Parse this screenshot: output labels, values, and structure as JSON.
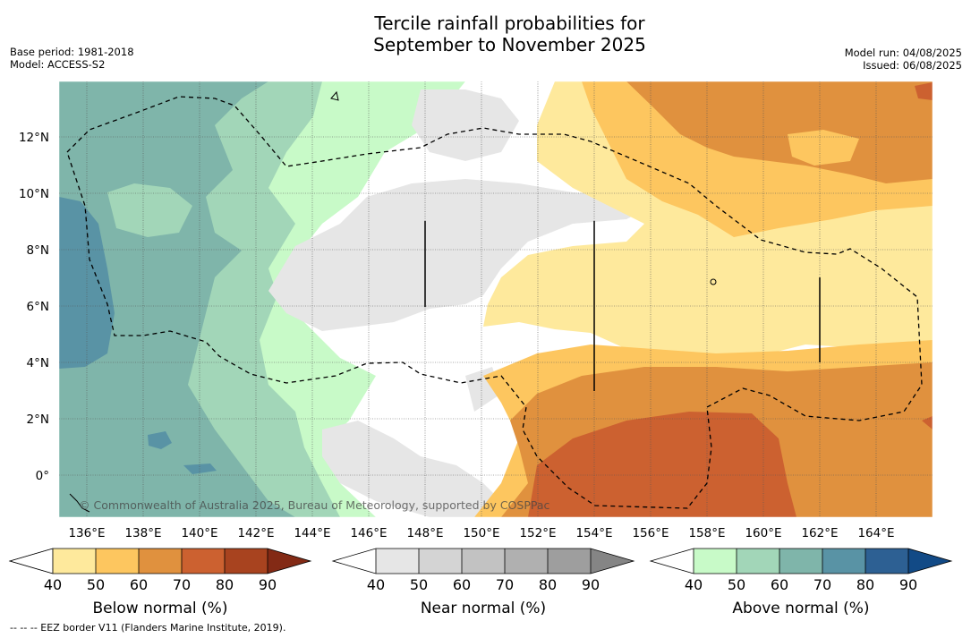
{
  "title_line1": "Tercile rainfall probabilities for",
  "title_line2": "September to November 2025",
  "base_period": "Base period: 1981-2018",
  "model": "Model: ACCESS-S2",
  "model_run": "Model run: 04/08/2025",
  "issued": "Issued: 06/08/2025",
  "map": {
    "lon_labels": [
      "136°E",
      "138°E",
      "140°E",
      "142°E",
      "144°E",
      "146°E",
      "148°E",
      "150°E",
      "152°E",
      "154°E",
      "156°E",
      "158°E",
      "160°E",
      "162°E",
      "164°E"
    ],
    "lat_labels": [
      "12°N",
      "10°N",
      "8°N",
      "6°N",
      "4°N",
      "2°N",
      "0°"
    ],
    "copyright": "© Commonwealth of Australia 2025, Bureau of Meteorology, supported by COSPPac"
  },
  "colorbars": [
    {
      "label": "Below normal (%)",
      "ticks": [
        "40",
        "50",
        "60",
        "70",
        "80",
        "90"
      ],
      "colors": [
        "#ffffff",
        "#fee99c",
        "#fdc65f",
        "#e0913e",
        "#cc6130",
        "#a8431f",
        "#832a15"
      ]
    },
    {
      "label": "Near normal (%)",
      "ticks": [
        "40",
        "50",
        "60",
        "70",
        "80",
        "90"
      ],
      "colors": [
        "#ffffff",
        "#e6e6e6",
        "#d4d4d4",
        "#c2c2c2",
        "#b0b0b0",
        "#9e9e9e",
        "#858585"
      ]
    },
    {
      "label": "Above normal (%)",
      "ticks": [
        "40",
        "50",
        "60",
        "70",
        "80",
        "90"
      ],
      "colors": [
        "#ffffff",
        "#c8fac8",
        "#a2d6b8",
        "#7fb5aa",
        "#5993a5",
        "#2d6093",
        "#124a86"
      ]
    }
  ],
  "footnote": "--  --  -- EEZ border V11 (Flanders Marine Institute, 2019)."
}
